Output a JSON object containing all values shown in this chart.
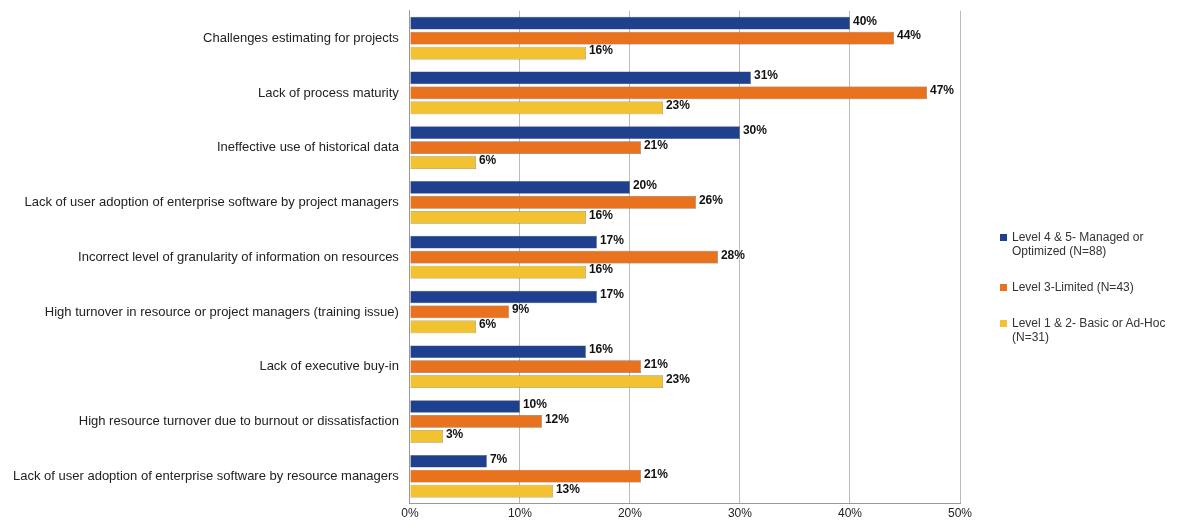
{
  "chart_data": {
    "type": "bar",
    "orientation": "horizontal",
    "categories": [
      "Challenges estimating for projects",
      "Lack of process maturity",
      "Ineffective use of historical data",
      "Lack of user adoption of enterprise software by project managers",
      "Incorrect level of granularity of information on resources",
      "High turnover in resource or project managers (training issue)",
      "Lack of executive buy-in",
      "High resource turnover due to burnout or dissatisfaction",
      "Lack of user adoption of enterprise software by resource managers"
    ],
    "series": [
      {
        "name": "Level 4 & 5- Managed or Optimized (N=88)",
        "color": "#1f3f8f",
        "values": [
          40,
          31,
          30,
          20,
          17,
          17,
          16,
          10,
          7
        ],
        "value_labels": [
          "40%",
          "31%",
          "30%",
          "20%",
          "17%",
          "17%",
          "16%",
          "10%",
          "7%"
        ]
      },
      {
        "name": "Level 3-Limited (N=43)",
        "color": "#e8721e",
        "values": [
          44,
          47,
          21,
          26,
          28,
          9,
          21,
          12,
          21
        ],
        "value_labels": [
          "44%",
          "47%",
          "21%",
          "26%",
          "28%",
          "9%",
          "21%",
          "12%",
          "21%"
        ]
      },
      {
        "name": "Level 1 & 2- Basic or Ad-Hoc (N=31)",
        "color": "#f2c230",
        "values": [
          16,
          23,
          6,
          16,
          16,
          6,
          23,
          3,
          13
        ],
        "value_labels": [
          "16%",
          "23%",
          "6%",
          "16%",
          "16%",
          "6%",
          "23%",
          "3%",
          "13%"
        ]
      }
    ],
    "xlim": [
      0,
      50
    ],
    "xticks": [
      {
        "value": 0,
        "label": "0%"
      },
      {
        "value": 10,
        "label": "10%"
      },
      {
        "value": 20,
        "label": "20%"
      },
      {
        "value": 30,
        "label": "30%"
      },
      {
        "value": 40,
        "label": "40%"
      },
      {
        "value": 50,
        "label": "50%"
      }
    ],
    "grid": "x",
    "legend": "right"
  }
}
